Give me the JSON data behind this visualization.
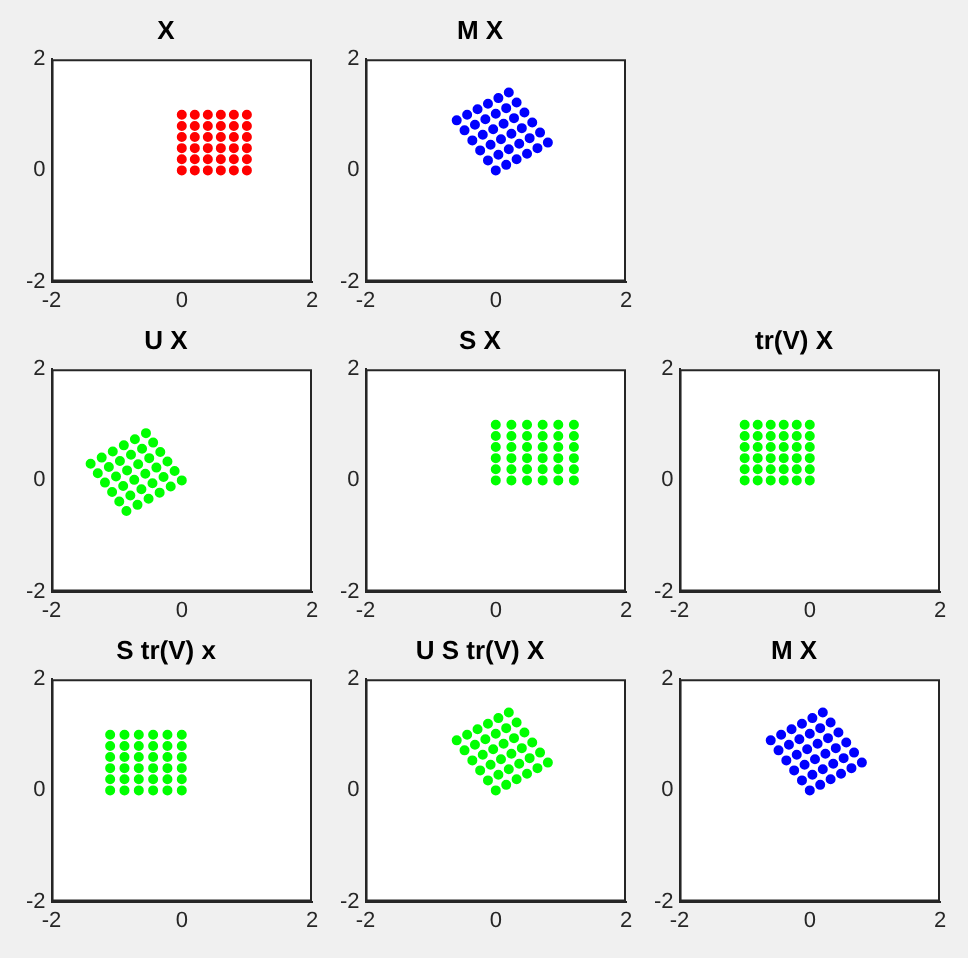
{
  "chart_data": [
    {
      "type": "scatter",
      "title": "X",
      "color": "#ff0000",
      "marker": "circle",
      "xlim": [
        -2,
        2
      ],
      "ylim": [
        -2,
        2
      ],
      "xticks": [
        -2,
        0,
        2
      ],
      "yticks": [
        -2,
        0,
        2
      ],
      "x": [
        0,
        0,
        0,
        0,
        0,
        0,
        0.2,
        0.2,
        0.2,
        0.2,
        0.2,
        0.2,
        0.4,
        0.4,
        0.4,
        0.4,
        0.4,
        0.4,
        0.6,
        0.6,
        0.6,
        0.6,
        0.6,
        0.6,
        0.8,
        0.8,
        0.8,
        0.8,
        0.8,
        0.8,
        1,
        1,
        1,
        1,
        1,
        1
      ],
      "values": [
        0,
        0.2,
        0.4,
        0.6,
        0.8,
        1,
        0,
        0.2,
        0.4,
        0.6,
        0.8,
        1,
        0,
        0.2,
        0.4,
        0.6,
        0.8,
        1,
        0,
        0.2,
        0.4,
        0.6,
        0.8,
        1,
        0,
        0.2,
        0.4,
        0.6,
        0.8,
        1,
        0,
        0.2,
        0.4,
        0.6,
        0.8,
        1
      ]
    },
    {
      "type": "scatter",
      "title": "M X",
      "color": "#0000ff",
      "marker": "circle",
      "xlim": [
        -2,
        2
      ],
      "ylim": [
        -2,
        2
      ],
      "xticks": [
        -2,
        0,
        2
      ],
      "yticks": [
        -2,
        0,
        2
      ],
      "x": [
        0,
        -0.12,
        -0.24,
        -0.36,
        -0.48,
        -0.6,
        0.16,
        0.04,
        -0.08,
        -0.2,
        -0.32,
        -0.44,
        0.32,
        0.2,
        0.08,
        -0.04,
        -0.16,
        -0.28,
        0.48,
        0.36,
        0.24,
        0.12,
        0,
        -0.12,
        0.64,
        0.52,
        0.4,
        0.28,
        0.16,
        0.04,
        0.8,
        0.68,
        0.56,
        0.44,
        0.32,
        0.2
      ],
      "values": [
        0,
        0.18,
        0.36,
        0.54,
        0.72,
        0.9,
        0.1,
        0.28,
        0.46,
        0.64,
        0.82,
        1,
        0.2,
        0.38,
        0.56,
        0.74,
        0.92,
        1.1,
        0.3,
        0.48,
        0.66,
        0.84,
        1.02,
        1.2,
        0.4,
        0.58,
        0.76,
        0.94,
        1.12,
        1.3,
        0.5,
        0.68,
        0.86,
        1.04,
        1.22,
        1.4
      ]
    },
    {
      "type": "scatter",
      "title": "U X",
      "color": "#00ff00",
      "marker": "circle",
      "xlim": [
        -2,
        2
      ],
      "ylim": [
        -2,
        2
      ],
      "xticks": [
        -2,
        0,
        2
      ],
      "yticks": [
        -2,
        0,
        2
      ],
      "x": [
        0,
        -0.11,
        -0.22,
        -0.33,
        -0.44,
        -0.55,
        -0.17,
        -0.28,
        -0.39,
        -0.5,
        -0.61,
        -0.72,
        -0.34,
        -0.45,
        -0.56,
        -0.67,
        -0.78,
        -0.89,
        -0.51,
        -0.62,
        -0.73,
        -0.84,
        -0.95,
        -1.06,
        -0.68,
        -0.79,
        -0.9,
        -1.01,
        -1.12,
        -1.23,
        -0.85,
        -0.96,
        -1.07,
        -1.18,
        -1.29,
        -1.4
      ],
      "values": [
        0,
        0.17,
        0.34,
        0.51,
        0.68,
        0.85,
        -0.11,
        0.06,
        0.23,
        0.4,
        0.57,
        0.74,
        -0.22,
        -0.05,
        0.12,
        0.29,
        0.46,
        0.63,
        -0.33,
        -0.16,
        0.01,
        0.18,
        0.35,
        0.52,
        -0.44,
        -0.27,
        -0.1,
        0.07,
        0.24,
        0.41,
        -0.55,
        -0.38,
        -0.21,
        -0.04,
        0.13,
        0.3
      ]
    },
    {
      "type": "scatter",
      "title": "S X",
      "color": "#00ff00",
      "marker": "circle",
      "xlim": [
        -2,
        2
      ],
      "ylim": [
        -2,
        2
      ],
      "xticks": [
        -2,
        0,
        2
      ],
      "yticks": [
        -2,
        0,
        2
      ],
      "x": [
        0,
        0,
        0,
        0,
        0,
        0,
        0.24,
        0.24,
        0.24,
        0.24,
        0.24,
        0.24,
        0.48,
        0.48,
        0.48,
        0.48,
        0.48,
        0.48,
        0.72,
        0.72,
        0.72,
        0.72,
        0.72,
        0.72,
        0.96,
        0.96,
        0.96,
        0.96,
        0.96,
        0.96,
        1.2,
        1.2,
        1.2,
        1.2,
        1.2,
        1.2
      ],
      "values": [
        0,
        0.2,
        0.4,
        0.6,
        0.8,
        1,
        0,
        0.2,
        0.4,
        0.6,
        0.8,
        1,
        0,
        0.2,
        0.4,
        0.6,
        0.8,
        1,
        0,
        0.2,
        0.4,
        0.6,
        0.8,
        1,
        0,
        0.2,
        0.4,
        0.6,
        0.8,
        1,
        0,
        0.2,
        0.4,
        0.6,
        0.8,
        1
      ]
    },
    {
      "type": "scatter",
      "title": "tr(V) X",
      "color": "#00ff00",
      "marker": "circle",
      "xlim": [
        -2,
        2
      ],
      "ylim": [
        -2,
        2
      ],
      "xticks": [
        -2,
        0,
        2
      ],
      "yticks": [
        -2,
        0,
        2
      ],
      "x": [
        0,
        0,
        0,
        0,
        0,
        0,
        -0.2,
        -0.2,
        -0.2,
        -0.2,
        -0.2,
        -0.2,
        -0.4,
        -0.4,
        -0.4,
        -0.4,
        -0.4,
        -0.4,
        -0.6,
        -0.6,
        -0.6,
        -0.6,
        -0.6,
        -0.6,
        -0.8,
        -0.8,
        -0.8,
        -0.8,
        -0.8,
        -0.8,
        -1,
        -1,
        -1,
        -1,
        -1,
        -1
      ],
      "values": [
        0,
        0.2,
        0.4,
        0.6,
        0.8,
        1,
        0,
        0.2,
        0.4,
        0.6,
        0.8,
        1,
        0,
        0.2,
        0.4,
        0.6,
        0.8,
        1,
        0,
        0.2,
        0.4,
        0.6,
        0.8,
        1,
        0,
        0.2,
        0.4,
        0.6,
        0.8,
        1,
        0,
        0.2,
        0.4,
        0.6,
        0.8,
        1
      ]
    },
    {
      "type": "scatter",
      "title": "S tr(V) x",
      "color": "#00ff00",
      "marker": "circle",
      "xlim": [
        -2,
        2
      ],
      "ylim": [
        -2,
        2
      ],
      "xticks": [
        -2,
        0,
        2
      ],
      "yticks": [
        -2,
        0,
        2
      ],
      "x": [
        0,
        0,
        0,
        0,
        0,
        0,
        -0.22,
        -0.22,
        -0.22,
        -0.22,
        -0.22,
        -0.22,
        -0.44,
        -0.44,
        -0.44,
        -0.44,
        -0.44,
        -0.44,
        -0.66,
        -0.66,
        -0.66,
        -0.66,
        -0.66,
        -0.66,
        -0.88,
        -0.88,
        -0.88,
        -0.88,
        -0.88,
        -0.88,
        -1.1,
        -1.1,
        -1.1,
        -1.1,
        -1.1,
        -1.1
      ],
      "values": [
        0,
        0.2,
        0.4,
        0.6,
        0.8,
        1,
        0,
        0.2,
        0.4,
        0.6,
        0.8,
        1,
        0,
        0.2,
        0.4,
        0.6,
        0.8,
        1,
        0,
        0.2,
        0.4,
        0.6,
        0.8,
        1,
        0,
        0.2,
        0.4,
        0.6,
        0.8,
        1,
        0,
        0.2,
        0.4,
        0.6,
        0.8,
        1
      ]
    },
    {
      "type": "scatter",
      "title": "U S tr(V) X",
      "color": "#00ff00",
      "marker": "circle",
      "xlim": [
        -2,
        2
      ],
      "ylim": [
        -2,
        2
      ],
      "xticks": [
        -2,
        0,
        2
      ],
      "yticks": [
        -2,
        0,
        2
      ],
      "x": [
        0,
        -0.12,
        -0.24,
        -0.36,
        -0.48,
        -0.6,
        0.16,
        0.04,
        -0.08,
        -0.2,
        -0.32,
        -0.44,
        0.32,
        0.2,
        0.08,
        -0.04,
        -0.16,
        -0.28,
        0.48,
        0.36,
        0.24,
        0.12,
        0,
        -0.12,
        0.64,
        0.52,
        0.4,
        0.28,
        0.16,
        0.04,
        0.8,
        0.68,
        0.56,
        0.44,
        0.32,
        0.2
      ],
      "values": [
        0,
        0.18,
        0.36,
        0.54,
        0.72,
        0.9,
        0.1,
        0.28,
        0.46,
        0.64,
        0.82,
        1,
        0.2,
        0.38,
        0.56,
        0.74,
        0.92,
        1.1,
        0.3,
        0.48,
        0.66,
        0.84,
        1.02,
        1.2,
        0.4,
        0.58,
        0.76,
        0.94,
        1.12,
        1.3,
        0.5,
        0.68,
        0.86,
        1.04,
        1.22,
        1.4
      ]
    },
    {
      "type": "scatter",
      "title": "M X",
      "color": "#0000ff",
      "marker": "circle",
      "xlim": [
        -2,
        2
      ],
      "ylim": [
        -2,
        2
      ],
      "xticks": [
        -2,
        0,
        2
      ],
      "yticks": [
        -2,
        0,
        2
      ],
      "x": [
        0,
        -0.12,
        -0.24,
        -0.36,
        -0.48,
        -0.6,
        0.16,
        0.04,
        -0.08,
        -0.2,
        -0.32,
        -0.44,
        0.32,
        0.2,
        0.08,
        -0.04,
        -0.16,
        -0.28,
        0.48,
        0.36,
        0.24,
        0.12,
        0,
        -0.12,
        0.64,
        0.52,
        0.4,
        0.28,
        0.16,
        0.04,
        0.8,
        0.68,
        0.56,
        0.44,
        0.32,
        0.2
      ],
      "values": [
        0,
        0.18,
        0.36,
        0.54,
        0.72,
        0.9,
        0.1,
        0.28,
        0.46,
        0.64,
        0.82,
        1,
        0.2,
        0.38,
        0.56,
        0.74,
        0.92,
        1.1,
        0.3,
        0.48,
        0.66,
        0.84,
        1.02,
        1.2,
        0.4,
        0.58,
        0.76,
        0.94,
        1.12,
        1.3,
        0.5,
        0.68,
        0.86,
        1.04,
        1.22,
        1.4
      ]
    }
  ]
}
